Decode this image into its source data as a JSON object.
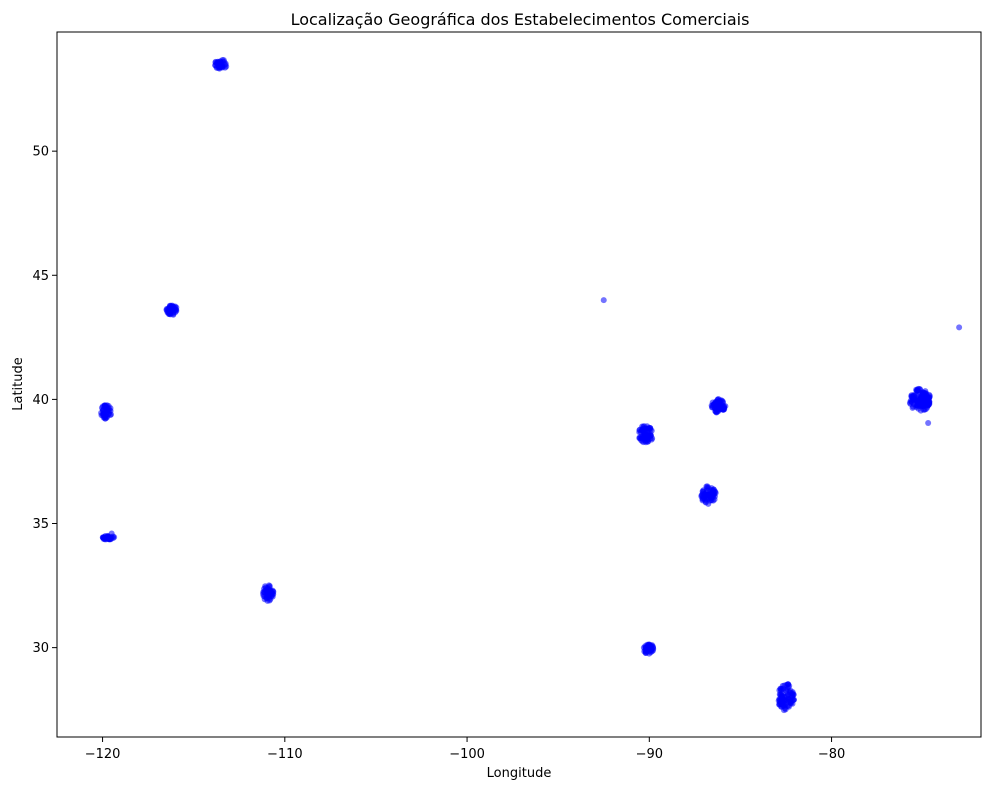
{
  "chart_data": {
    "type": "scatter",
    "title": "Localização Geográfica dos Estabelecimentos Comerciais",
    "xlabel": "Longitude",
    "ylabel": "Latitude",
    "xlim": [
      -122.5,
      -71.8
    ],
    "ylim": [
      26.4,
      54.8
    ],
    "xticks": [
      -120,
      -110,
      -100,
      -90,
      -80
    ],
    "yticks": [
      30,
      35,
      40,
      45,
      50
    ],
    "grid": false,
    "legend": "none",
    "marker_color": "#0000ff",
    "marker_opacity": 0.55,
    "clusters": [
      {
        "x": -113.5,
        "y": 53.5,
        "rx": 0.35,
        "ry": 0.2,
        "count": 40
      },
      {
        "x": -116.2,
        "y": 43.6,
        "rx": 0.3,
        "ry": 0.2,
        "count": 40
      },
      {
        "x": -119.8,
        "y": 39.5,
        "rx": 0.3,
        "ry": 0.28,
        "count": 45
      },
      {
        "x": -119.7,
        "y": 34.43,
        "rx": 0.35,
        "ry": 0.08,
        "count": 35
      },
      {
        "x": -110.9,
        "y": 32.2,
        "rx": 0.3,
        "ry": 0.35,
        "count": 50
      },
      {
        "x": -90.2,
        "y": 38.6,
        "rx": 0.42,
        "ry": 0.35,
        "count": 70
      },
      {
        "x": -86.2,
        "y": 39.75,
        "rx": 0.38,
        "ry": 0.3,
        "count": 60
      },
      {
        "x": -86.75,
        "y": 36.15,
        "rx": 0.42,
        "ry": 0.38,
        "count": 70
      },
      {
        "x": -90.05,
        "y": 29.95,
        "rx": 0.3,
        "ry": 0.2,
        "count": 40
      },
      {
        "x": -82.5,
        "y": 28.0,
        "rx": 0.45,
        "ry": 0.55,
        "count": 90
      },
      {
        "x": -75.15,
        "y": 39.98,
        "rx": 0.6,
        "ry": 0.45,
        "count": 120
      }
    ],
    "points": [
      {
        "x": -92.5,
        "y": 44.0
      },
      {
        "x": -73.0,
        "y": 42.9
      },
      {
        "x": -74.7,
        "y": 39.05
      },
      {
        "x": -119.5,
        "y": 34.6
      },
      {
        "x": -89.85,
        "y": 30.1
      }
    ]
  }
}
